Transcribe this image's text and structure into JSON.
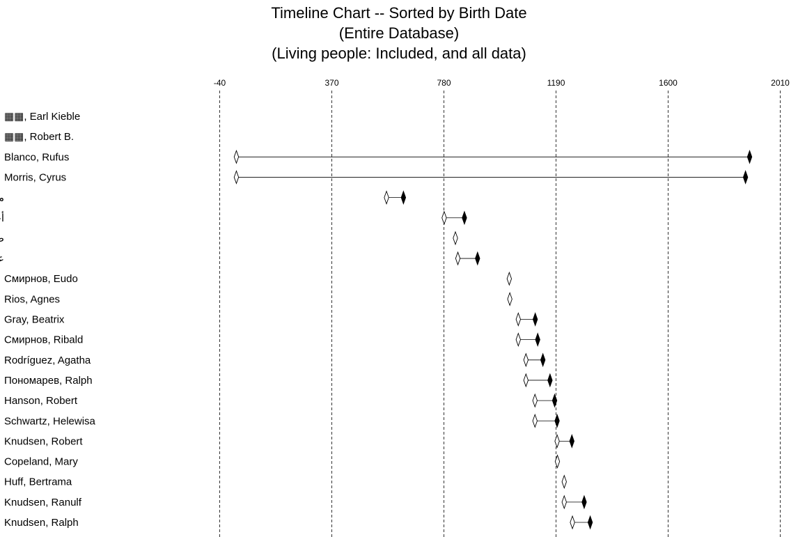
{
  "chart_data": {
    "type": "timeline",
    "title": [
      "Timeline Chart -- Sorted by Birth Date",
      "(Entire Database)",
      "(Living people: Included, and all data)"
    ],
    "x_ticks": [
      -40,
      370,
      780,
      1190,
      1600,
      2010
    ],
    "xlim": [
      -40,
      2010
    ],
    "grid": "vertical-dashed",
    "rows": [
      {
        "name": "▦▦, Earl Kieble",
        "birth": null,
        "death": null
      },
      {
        "name": "▦▦, Robert B.",
        "birth": null,
        "death": null
      },
      {
        "name": "Blanco, Rufus",
        "birth": 21,
        "death": 1898
      },
      {
        "name": "Morris, Cyrus",
        "birth": 21,
        "death": 1883
      },
      {
        "name": "محمد ,",
        "birth": 570,
        "death": 632
      },
      {
        "name": "أحمد ,",
        "birth": 781,
        "death": 855
      },
      {
        "name": "صالح ,",
        "birth": 822,
        "death": null
      },
      {
        "name": "عبد الله ,",
        "birth": 831,
        "death": 903
      },
      {
        "name": "Смирнов, Eudo",
        "birth": 1019,
        "death": null
      },
      {
        "name": "Rios, Agnes",
        "birth": 1021,
        "death": null
      },
      {
        "name": "Gray, Beatrix",
        "birth": 1052,
        "death": 1114
      },
      {
        "name": "Смирнов, Ribald",
        "birth": 1052,
        "death": 1123
      },
      {
        "name": "Rodríguez, Agatha",
        "birth": 1080,
        "death": 1142
      },
      {
        "name": "Пономарев, Ralph",
        "birth": 1080,
        "death": 1168
      },
      {
        "name": "Hanson, Robert",
        "birth": 1113,
        "death": 1185
      },
      {
        "name": "Schwartz, Helewisa",
        "birth": 1113,
        "death": 1194
      },
      {
        "name": "Knudsen, Robert",
        "birth": 1194,
        "death": 1248
      },
      {
        "name": "Copeland, Mary",
        "birth": 1195,
        "death": null
      },
      {
        "name": "Huff, Bertrama",
        "birth": 1220,
        "death": null
      },
      {
        "name": "Knudsen, Ranulf",
        "birth": 1220,
        "death": 1293
      },
      {
        "name": "Knudsen, Ralph",
        "birth": 1250,
        "death": 1315
      }
    ]
  }
}
